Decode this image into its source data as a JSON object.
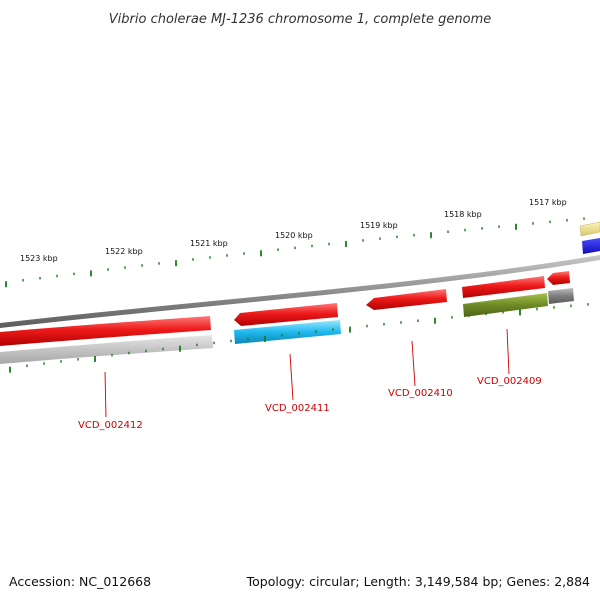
{
  "title": "Vibrio cholerae MJ-1236 chromosome 1, complete genome",
  "footer": {
    "accession": "Accession: NC_012668",
    "summary": "Topology: circular; Length: 3,149,584 bp; Genes: 2,884"
  },
  "ruler": {
    "unit": "kbp",
    "labels": [
      "1523 kbp",
      "1522 kbp",
      "1521 kbp",
      "1520 kbp",
      "1519 kbp",
      "1518 kbp",
      "1517 kbp"
    ]
  },
  "gene_labels": [
    "VCD_002412",
    "VCD_002411",
    "VCD_002410",
    "VCD_002409"
  ],
  "colors": {
    "cds_forward": "#e8141b",
    "cds_reverse_blue": "#1fb8ee",
    "cds_reverse_olive": "#6f8a25",
    "cds_reverse_grey": "#8a8a8a",
    "cds_reverse_light": "#c8c8c8",
    "cds_pale_yellow": "#ece08a",
    "cds_dark_blue": "#1c1ce6",
    "backbone": "#8f8f8f",
    "tick": "#1a7a1a",
    "label": "#cc0000"
  }
}
